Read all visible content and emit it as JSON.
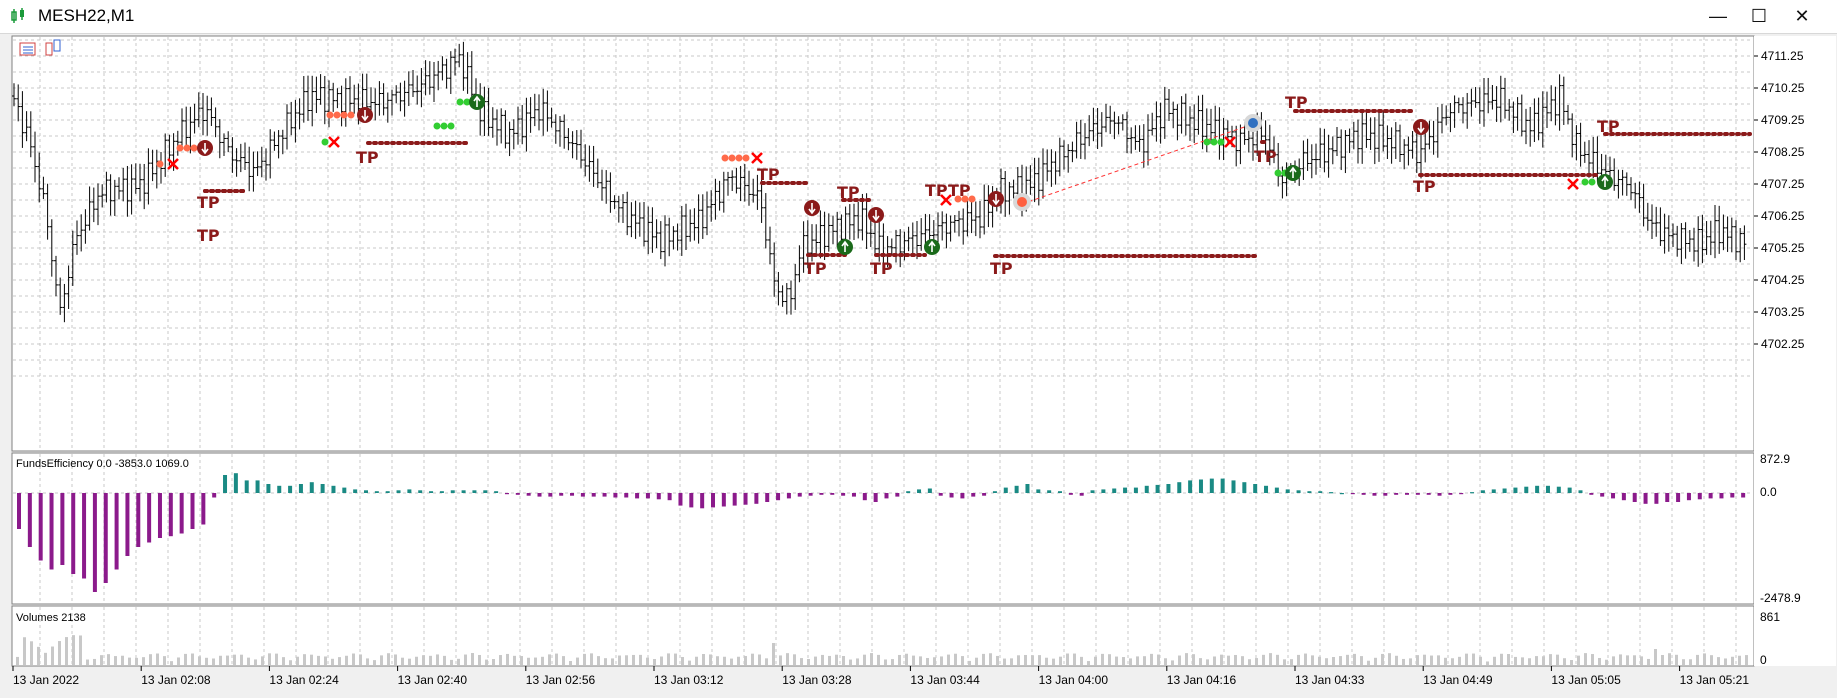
{
  "window": {
    "title": "MESH22,M1",
    "minimize_glyph": "—",
    "maximize_glyph": "☐",
    "close_glyph": "✕"
  },
  "toolbar_icons": [
    "grid-list-icon",
    "chart-object-icon"
  ],
  "price_axis": {
    "labels": [
      "4711.25",
      "4710.25",
      "4709.25",
      "4708.25",
      "4707.25",
      "4706.25",
      "4705.25",
      "4704.25",
      "4703.25",
      "4702.25"
    ]
  },
  "indicator": {
    "label": "FundsEfficiency 0.0 -3853.0 1069.0",
    "axis_top": "872.9",
    "axis_zero": "0.0",
    "axis_bottom": "-2478.9",
    "color_positive": "#1a8a84",
    "color_negative": "#8b1a8b"
  },
  "volumes": {
    "label": "Volumes 2138",
    "axis_top": "861",
    "axis_bottom": "0",
    "color": "#c8c8c8"
  },
  "time_axis": {
    "labels": [
      "13 Jan 2022",
      "13 Jan 02:08",
      "13 Jan 02:24",
      "13 Jan 02:40",
      "13 Jan 02:56",
      "13 Jan 03:12",
      "13 Jan 03:28",
      "13 Jan 03:44",
      "13 Jan 04:00",
      "13 Jan 04:16",
      "13 Jan 04:33",
      "13 Jan 04:49",
      "13 Jan 05:05",
      "13 Jan 05:21"
    ]
  },
  "trade_marker_label": "TP",
  "colors": {
    "candle": "#000000",
    "grid": "#c8c8c8",
    "tp_text": "#8b1a1a",
    "sell_dots": "#ff6a4a",
    "buy_dots": "#32cd32",
    "close_x": "#ff0000"
  }
}
